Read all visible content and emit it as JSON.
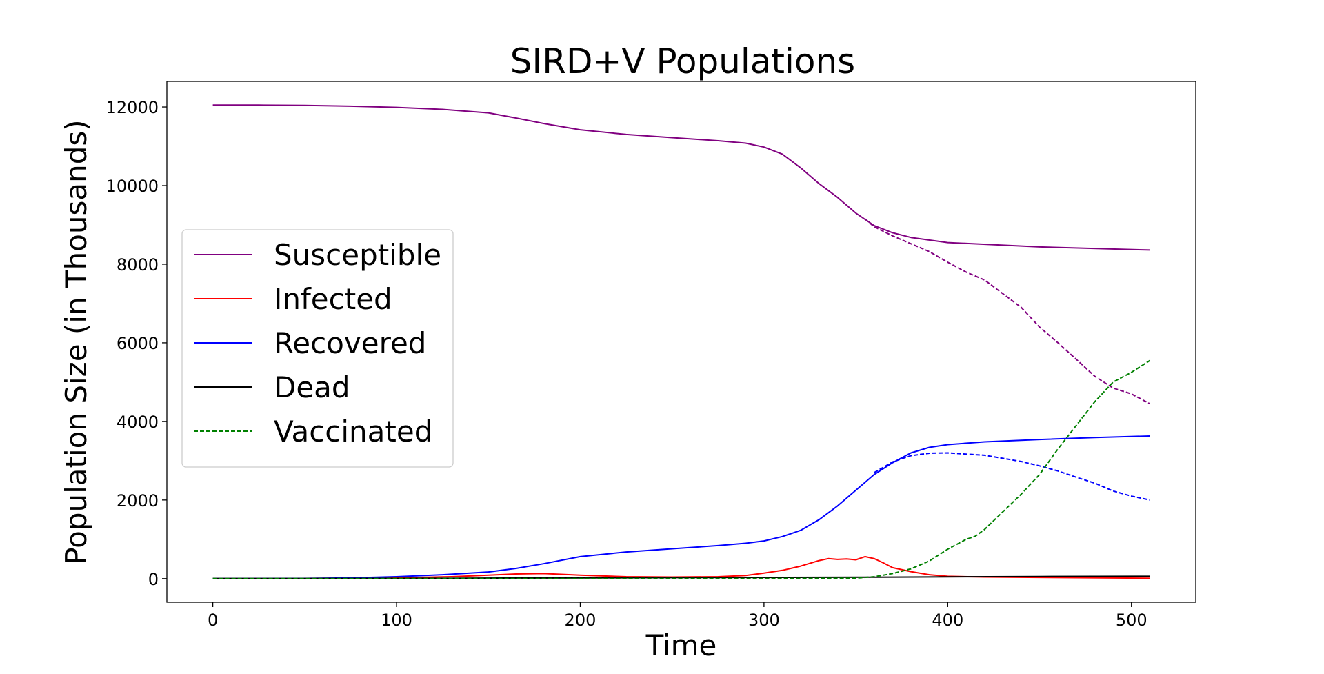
{
  "chart_data": {
    "type": "line",
    "title": "SIRD+V Populations",
    "xlabel": "Time",
    "ylabel": "Population Size (in Thousands)",
    "xlim": [
      -25,
      535
    ],
    "ylim": [
      -600,
      12650
    ],
    "xticks": [
      0,
      100,
      200,
      300,
      400,
      500
    ],
    "yticks": [
      0,
      2000,
      4000,
      6000,
      8000,
      10000,
      12000
    ],
    "grid": false,
    "legend_position": "center-left",
    "series": [
      {
        "name": "Susceptible",
        "color": "#800080",
        "dashed": false,
        "x": [
          0,
          25,
          50,
          75,
          100,
          125,
          150,
          165,
          180,
          200,
          225,
          250,
          275,
          290,
          300,
          310,
          320,
          330,
          340,
          350,
          360,
          370,
          380,
          400,
          450,
          510
        ],
        "y": [
          12050,
          12048,
          12040,
          12020,
          11990,
          11940,
          11850,
          11720,
          11580,
          11420,
          11300,
          11220,
          11140,
          11080,
          10980,
          10800,
          10450,
          10050,
          9700,
          9300,
          8980,
          8800,
          8680,
          8550,
          8440,
          8360
        ]
      },
      {
        "name": "",
        "color": "#800080",
        "dashed": true,
        "x": [
          355,
          360,
          370,
          380,
          390,
          400,
          410,
          420,
          430,
          440,
          450,
          460,
          470,
          480,
          490,
          500,
          510
        ],
        "y": [
          9150,
          8950,
          8720,
          8520,
          8320,
          8050,
          7800,
          7600,
          7250,
          6900,
          6400,
          6000,
          5580,
          5150,
          4850,
          4700,
          4450
        ]
      },
      {
        "name": "Infected",
        "color": "#ff0000",
        "dashed": false,
        "x": [
          0,
          50,
          100,
          130,
          150,
          165,
          180,
          200,
          225,
          250,
          275,
          290,
          300,
          310,
          320,
          330,
          335,
          340,
          345,
          350,
          355,
          360,
          365,
          370,
          380,
          390,
          400,
          420,
          450,
          510
        ],
        "y": [
          0,
          5,
          20,
          50,
          90,
          120,
          130,
          90,
          50,
          40,
          50,
          80,
          140,
          210,
          320,
          460,
          510,
          490,
          500,
          480,
          560,
          510,
          400,
          280,
          180,
          100,
          60,
          40,
          30,
          10
        ]
      },
      {
        "name": "Recovered",
        "color": "#0000ff",
        "dashed": false,
        "x": [
          0,
          50,
          75,
          100,
          125,
          150,
          165,
          180,
          200,
          225,
          250,
          275,
          290,
          300,
          310,
          320,
          330,
          340,
          350,
          360,
          370,
          380,
          390,
          400,
          420,
          450,
          480,
          510
        ],
        "y": [
          0,
          5,
          20,
          50,
          100,
          170,
          260,
          380,
          560,
          680,
          760,
          840,
          900,
          960,
          1070,
          1230,
          1500,
          1850,
          2250,
          2650,
          2950,
          3200,
          3340,
          3410,
          3480,
          3540,
          3590,
          3630
        ]
      },
      {
        "name": "",
        "color": "#0000ff",
        "dashed": true,
        "x": [
          360,
          370,
          380,
          390,
          400,
          410,
          420,
          430,
          440,
          450,
          460,
          470,
          480,
          490,
          500,
          510
        ],
        "y": [
          2700,
          2970,
          3130,
          3190,
          3200,
          3170,
          3140,
          3060,
          2980,
          2870,
          2740,
          2580,
          2430,
          2230,
          2100,
          2000
        ]
      },
      {
        "name": "Dead",
        "color": "#000000",
        "dashed": false,
        "x": [
          0,
          100,
          200,
          300,
          360,
          400,
          450,
          510
        ],
        "y": [
          0,
          5,
          20,
          30,
          35,
          45,
          55,
          60
        ]
      },
      {
        "name": "Vaccinated",
        "color": "#008000",
        "dashed": true,
        "x": [
          0,
          100,
          200,
          300,
          350,
          360,
          370,
          380,
          390,
          400,
          410,
          415,
          420,
          430,
          440,
          450,
          460,
          470,
          480,
          490,
          500,
          510
        ],
        "y": [
          0,
          0,
          0,
          0,
          10,
          50,
          130,
          250,
          450,
          750,
          1000,
          1080,
          1250,
          1700,
          2150,
          2650,
          3300,
          3900,
          4500,
          5000,
          5250,
          5550
        ]
      }
    ]
  }
}
